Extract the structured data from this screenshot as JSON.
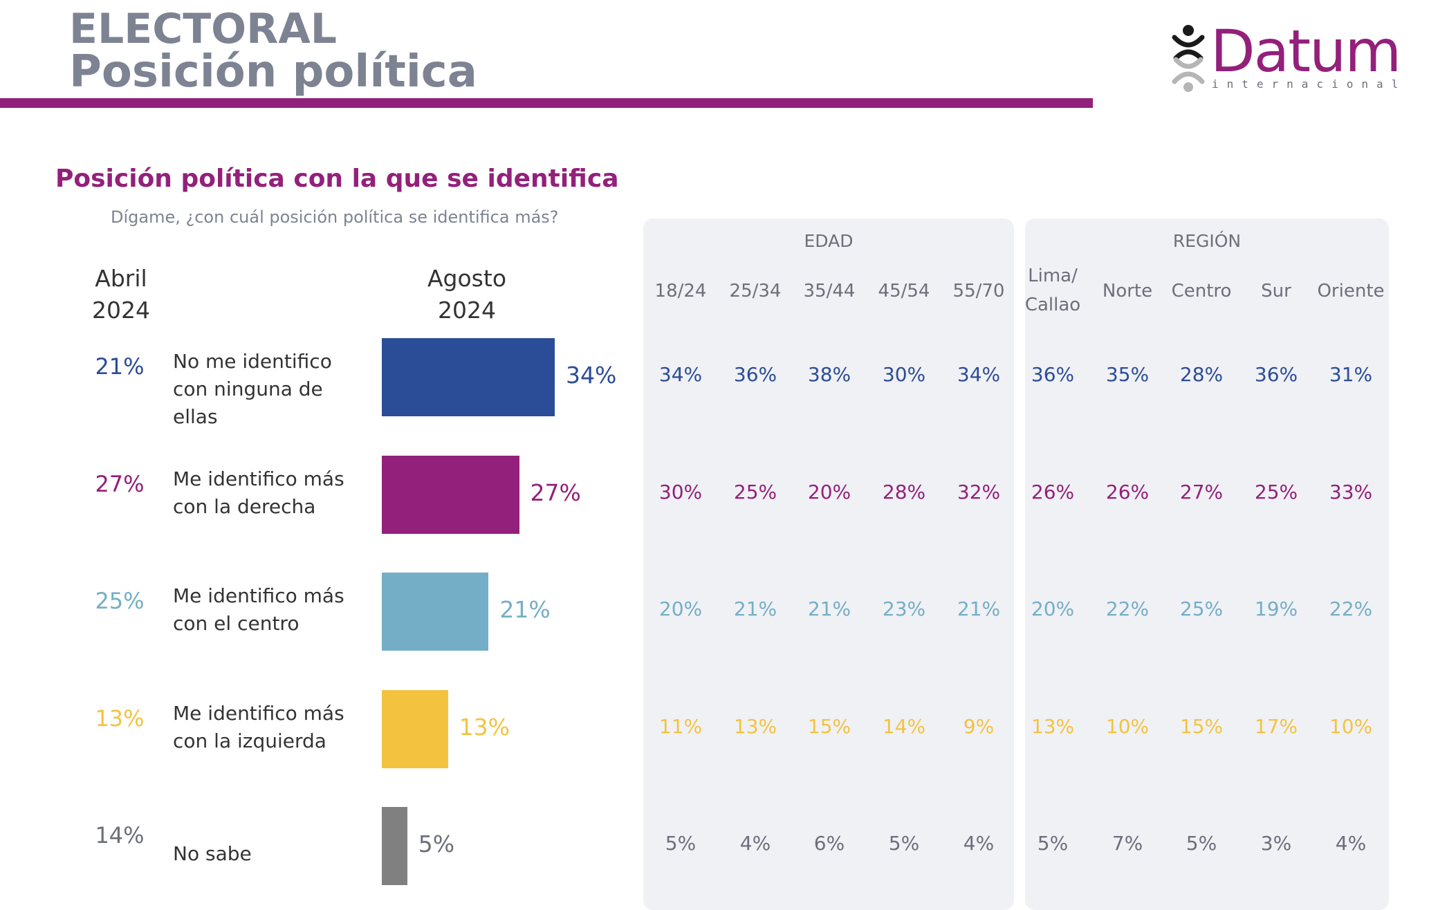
{
  "header": {
    "line1": "ELECTORAL",
    "line2": "Posición política"
  },
  "logo": {
    "name": "Datum",
    "sub": "internacional"
  },
  "title": "Posición política con la que se identifica",
  "subtitle": "Dígame, ¿con cuál posición política se identifica más?",
  "chart_data": {
    "type": "bar",
    "title": "Posición política con la que se identifica",
    "subtitle": "Dígame, ¿con cuál posición política se identifica más?",
    "orientation": "horizontal",
    "periods": [
      {
        "line1": "Abril",
        "line2": "2024"
      },
      {
        "line1": "Agosto",
        "line2": "2024"
      }
    ],
    "categories": [
      {
        "line1": "No me identifico",
        "line2": "con ninguna de ellas",
        "color": "#2b4c96",
        "abril": "21%",
        "agosto": 34,
        "agosto_label": "34%"
      },
      {
        "line1": "Me identifico más",
        "line2": "con la derecha",
        "color": "#93207b",
        "abril": "27%",
        "agosto": 27,
        "agosto_label": "27%"
      },
      {
        "line1": "Me identifico más",
        "line2": "con el centro",
        "color": "#74aec6",
        "abril": "25%",
        "agosto": 21,
        "agosto_label": "21%"
      },
      {
        "line1": "Me identifico más",
        "line2": "con la izquierda",
        "color": "#f3c340",
        "abril": "13%",
        "agosto": 13,
        "agosto_label": "13%"
      },
      {
        "line1": "No sabe",
        "line2": "",
        "color": "#808080",
        "label_color": "#6b6f7a",
        "abril": "14%",
        "agosto": 5,
        "agosto_label": "5%"
      }
    ],
    "breakdown": {
      "groups": [
        {
          "name": "EDAD",
          "columns": [
            {
              "l1": "18/24",
              "l2": ""
            },
            {
              "l1": "25/34",
              "l2": ""
            },
            {
              "l1": "35/44",
              "l2": ""
            },
            {
              "l1": "45/54",
              "l2": ""
            },
            {
              "l1": "55/70",
              "l2": ""
            }
          ],
          "rows": [
            [
              "34%",
              "36%",
              "38%",
              "30%",
              "34%"
            ],
            [
              "30%",
              "25%",
              "20%",
              "28%",
              "32%"
            ],
            [
              "20%",
              "21%",
              "21%",
              "23%",
              "21%"
            ],
            [
              "11%",
              "13%",
              "15%",
              "14%",
              "9%"
            ],
            [
              "5%",
              "4%",
              "6%",
              "5%",
              "4%"
            ]
          ]
        },
        {
          "name": "REGIÓN",
          "columns": [
            {
              "l1": "Lima/",
              "l2": "Callao"
            },
            {
              "l1": "Norte",
              "l2": ""
            },
            {
              "l1": "Centro",
              "l2": ""
            },
            {
              "l1": "Sur",
              "l2": ""
            },
            {
              "l1": "Oriente",
              "l2": ""
            }
          ],
          "rows": [
            [
              "36%",
              "35%",
              "28%",
              "36%",
              "31%"
            ],
            [
              "26%",
              "26%",
              "27%",
              "25%",
              "33%"
            ],
            [
              "20%",
              "22%",
              "25%",
              "19%",
              "22%"
            ],
            [
              "13%",
              "10%",
              "15%",
              "17%",
              "10%"
            ],
            [
              "5%",
              "7%",
              "5%",
              "3%",
              "4%"
            ]
          ]
        }
      ]
    }
  }
}
